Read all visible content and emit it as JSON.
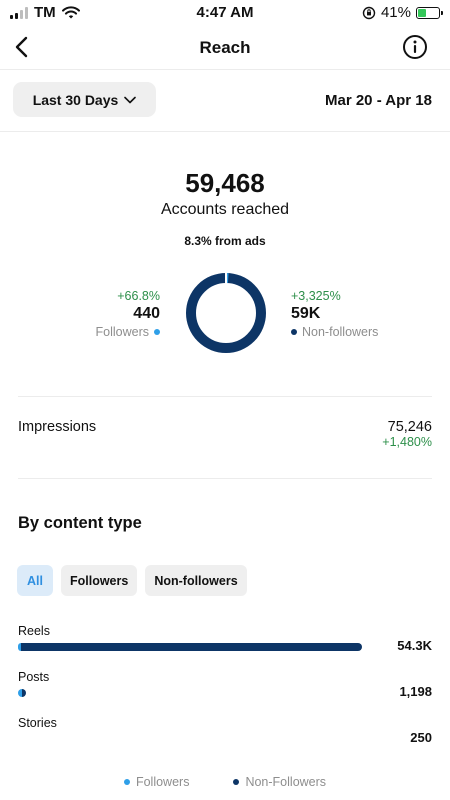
{
  "status_bar": {
    "carrier": "TM",
    "time": "4:47 AM",
    "battery_percent": "41%",
    "battery_level": 0.41,
    "icons": [
      "signal-icon",
      "wifi-icon",
      "orientation-lock-icon",
      "battery-charging-icon"
    ]
  },
  "nav": {
    "title": "Reach",
    "back_icon": "chevron-left-icon",
    "info_icon": "info-icon"
  },
  "filter": {
    "range_label": "Last 30 Days",
    "date_range": "Mar 20 - Apr 18"
  },
  "summary": {
    "accounts_reached": "59,468",
    "accounts_label": "Accounts reached",
    "ads_note": "8.3% from ads",
    "followers": {
      "delta": "+66.8%",
      "value": "440",
      "label": "Followers"
    },
    "non_followers": {
      "delta": "+3,325%",
      "value": "59K",
      "label": "Non-followers"
    },
    "donut": {
      "followers_share": 0.0074,
      "non_followers_share": 0.9926
    }
  },
  "impressions": {
    "label": "Impressions",
    "value": "75,246",
    "delta": "+1,480%"
  },
  "content_type": {
    "title": "By content type",
    "chips": [
      "All",
      "Followers",
      "Non-followers"
    ],
    "active_chip": "All",
    "rows": [
      {
        "label": "Reels",
        "value": "54.3K",
        "followers_frac": 0.007,
        "non_followers_frac": 0.993,
        "share_of_max": 1.0
      },
      {
        "label": "Posts",
        "value": "1,198",
        "followers_frac": 0.5,
        "non_followers_frac": 0.5,
        "share_of_max": 0.022
      },
      {
        "label": "Stories",
        "value": "250",
        "followers_frac": 0.0,
        "non_followers_frac": 0.0,
        "share_of_max": 0.0
      }
    ],
    "legend": [
      "Followers",
      "Non-Followers"
    ]
  },
  "colors": {
    "followers": "#2f9fe8",
    "non_followers": "#0d3566",
    "positive": "#2d8f4a",
    "chip_active_bg": "#dcebf9",
    "chip_active_text": "#2f8fe0"
  }
}
